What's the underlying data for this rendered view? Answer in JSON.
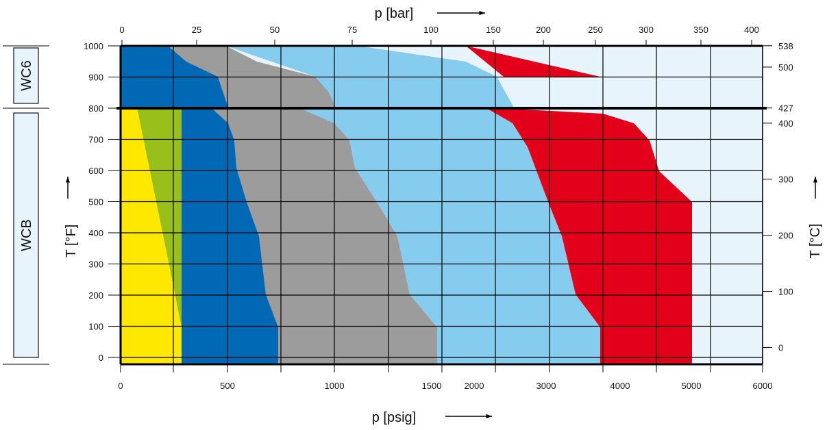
{
  "chart_data": {
    "type": "area",
    "top_axis": {
      "label": "p [bar]",
      "ticks": [
        "0",
        "25",
        "50",
        "75",
        "100",
        "150",
        "200",
        "250",
        "300",
        "350",
        "400"
      ]
    },
    "bottom_axis": {
      "label": "p [psig]",
      "ticks": [
        "0",
        "500",
        "1000",
        "1500",
        "2000",
        "3000",
        "4000",
        "5000",
        "6000"
      ]
    },
    "left_axis": {
      "label": "T [°F]",
      "ticks": [
        "0",
        "100",
        "200",
        "300",
        "400",
        "500",
        "600",
        "700",
        "800",
        "900",
        "1000"
      ],
      "ylim": [
        0,
        1000
      ]
    },
    "right_axis": {
      "label": "T [°C]",
      "ticks": [
        "0",
        "100",
        "200",
        "300",
        "400",
        "427",
        "500",
        "538"
      ]
    },
    "materials": [
      {
        "label": "WC6",
        "range_F": [
          800,
          1000
        ]
      },
      {
        "label": "WCB",
        "range_F": [
          0,
          800
        ]
      }
    ],
    "grid": true,
    "colors": {
      "background_region": "#e8f4fb",
      "yellow": "#ffe800",
      "green": "#99c01a",
      "dark_blue": "#0068b4",
      "gray": "#9c9c9c",
      "light_blue": "#86ccee",
      "red": "#e2001a",
      "grid": "#000000"
    }
  }
}
